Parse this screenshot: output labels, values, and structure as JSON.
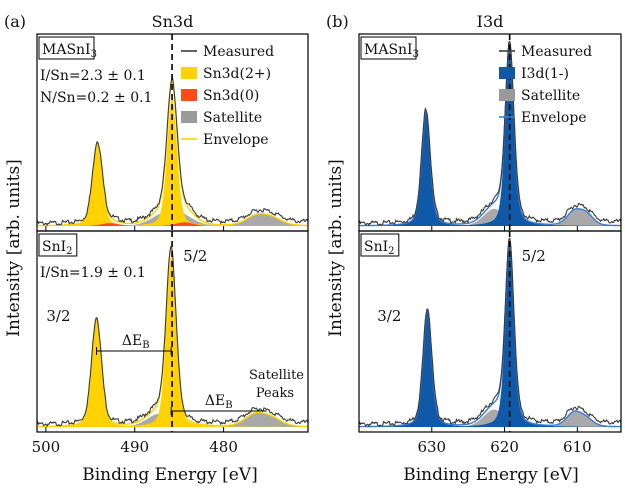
{
  "figure": {
    "ylabel": "Intensity [arb. units]",
    "xlabel": "Binding Energy [eV]"
  },
  "chart_data": [
    {
      "type": "line",
      "panel_label": "(a)",
      "title": "Sn3d",
      "xlabel": "Binding Energy [eV]",
      "ylabel": "Intensity [arb. units]",
      "xlim": [
        501,
        470.5
      ],
      "xticks": [
        500,
        490,
        480
      ],
      "reference_line_x": 485.8,
      "colors": {
        "main": "#FFD200",
        "second": "#FF4A1A",
        "satellite": "#9A9A9A",
        "envelope": "#FFD200",
        "measured": "#3A3A3A"
      },
      "legend_placement": "top-right",
      "legend": [
        "Measured",
        "Sn3d(2+)",
        "Sn3d(0)",
        "Satellite",
        "Envelope"
      ],
      "subplots": [
        {
          "sample_label": "MASnI3",
          "sample_base": "MASnI",
          "sample_sub": "3",
          "annotations": [
            "I/Sn=2.3 ± 0.1",
            "N/Sn=0.2 ± 0.1"
          ],
          "main_peaks": [
            {
              "center": 494.2,
              "height": 0.44,
              "sigma": 0.55,
              "gamma": 0.3
            },
            {
              "center": 485.8,
              "height": 0.7,
              "sigma": 0.55,
              "gamma": 0.3
            }
          ],
          "second_peaks": [
            {
              "center": 492.8,
              "height": 0.015,
              "sigma": 1.0,
              "gamma": 0.1
            },
            {
              "center": 484.4,
              "height": 0.02,
              "sigma": 1.0,
              "gamma": 0.1
            }
          ],
          "satellite_peaks": [
            {
              "center": 486.8,
              "height": 0.06,
              "sigma": 1.4,
              "gamma": 0.2
            },
            {
              "center": 484.6,
              "height": 0.05,
              "sigma": 1.3,
              "gamma": 0.2
            },
            {
              "center": 476.3,
              "height": 0.05,
              "sigma": 1.2,
              "gamma": 0.2
            },
            {
              "center": 474.5,
              "height": 0.035,
              "sigma": 1.2,
              "gamma": 0.2
            }
          ]
        },
        {
          "sample_label": "SnI2",
          "sample_base": "SnI",
          "sample_sub": "2",
          "annotations": [
            "I/Sn=1.9 ± 0.1"
          ],
          "peak_labels": [
            "3/2",
            "5/2"
          ],
          "delta_labels": [
            "ΔE",
            "ΔE"
          ],
          "delta_sub": "B",
          "satellite_label": [
            "Satellite",
            "Peaks"
          ],
          "main_peaks": [
            {
              "center": 494.3,
              "height": 0.57,
              "sigma": 0.55,
              "gamma": 0.3
            },
            {
              "center": 485.9,
              "height": 0.9,
              "sigma": 0.55,
              "gamma": 0.3
            }
          ],
          "second_peaks": [],
          "satellite_peaks": [
            {
              "center": 487.2,
              "height": 0.07,
              "sigma": 1.4,
              "gamma": 0.2
            },
            {
              "center": 476.5,
              "height": 0.06,
              "sigma": 1.2,
              "gamma": 0.2
            },
            {
              "center": 474.6,
              "height": 0.04,
              "sigma": 1.2,
              "gamma": 0.2
            }
          ]
        }
      ]
    },
    {
      "type": "line",
      "panel_label": "(b)",
      "title": "I3d",
      "xlabel": "Binding Energy [eV]",
      "ylabel": "Intensity [arb. units]",
      "xlim": [
        640,
        604
      ],
      "xticks": [
        630,
        620,
        610
      ],
      "reference_line_x": 619.3,
      "colors": {
        "main": "#1059A8",
        "satellite": "#9A9A9A",
        "envelope": "#3B7BD0",
        "measured": "#3A3A3A"
      },
      "legend_placement": "top-right",
      "legend": [
        "Measured",
        "I3d(1-)",
        "Satellite",
        "Envelope"
      ],
      "subplots": [
        {
          "sample_label": "MASnI3",
          "sample_base": "MASnI",
          "sample_sub": "3",
          "annotations": [],
          "main_peaks": [
            {
              "center": 630.8,
              "height": 0.62,
              "sigma": 0.6,
              "gamma": 0.35
            },
            {
              "center": 619.3,
              "height": 0.96,
              "sigma": 0.6,
              "gamma": 0.35
            }
          ],
          "second_peaks": [],
          "satellite_peaks": [
            {
              "center": 622.3,
              "height": 0.05,
              "sigma": 1.2,
              "gamma": 0.2
            },
            {
              "center": 621.0,
              "height": 0.06,
              "sigma": 1.0,
              "gamma": 0.2
            },
            {
              "center": 610.5,
              "height": 0.07,
              "sigma": 1.0,
              "gamma": 0.2
            },
            {
              "center": 608.8,
              "height": 0.06,
              "sigma": 1.0,
              "gamma": 0.2
            }
          ]
        },
        {
          "sample_label": "SnI2",
          "sample_base": "SnI",
          "sample_sub": "2",
          "annotations": [],
          "peak_labels": [
            "3/2",
            "5/2"
          ],
          "main_peaks": [
            {
              "center": 630.6,
              "height": 0.62,
              "sigma": 0.6,
              "gamma": 0.35
            },
            {
              "center": 619.3,
              "height": 0.96,
              "sigma": 0.6,
              "gamma": 0.35
            }
          ],
          "second_peaks": [],
          "satellite_peaks": [
            {
              "center": 622.3,
              "height": 0.05,
              "sigma": 1.2,
              "gamma": 0.2
            },
            {
              "center": 621.0,
              "height": 0.06,
              "sigma": 1.0,
              "gamma": 0.2
            },
            {
              "center": 610.5,
              "height": 0.07,
              "sigma": 1.0,
              "gamma": 0.2
            },
            {
              "center": 608.8,
              "height": 0.04,
              "sigma": 1.0,
              "gamma": 0.2
            }
          ]
        }
      ]
    }
  ]
}
